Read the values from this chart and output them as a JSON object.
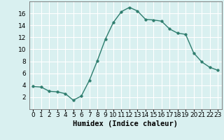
{
  "x": [
    0,
    1,
    2,
    3,
    4,
    5,
    6,
    7,
    8,
    9,
    10,
    11,
    12,
    13,
    14,
    15,
    16,
    17,
    18,
    19,
    20,
    21,
    22,
    23
  ],
  "y": [
    3.8,
    3.7,
    3.0,
    2.9,
    2.6,
    1.5,
    2.2,
    4.8,
    8.1,
    11.7,
    14.5,
    16.3,
    17.0,
    16.4,
    15.0,
    14.9,
    14.7,
    13.4,
    12.7,
    12.5,
    9.4,
    7.9,
    7.0,
    6.5
  ],
  "line_color": "#2e7d6e",
  "marker": "o",
  "marker_size": 2.5,
  "bg_color": "#d9f0f0",
  "grid_color": "#ffffff",
  "xlabel": "Humidex (Indice chaleur)",
  "xlim": [
    -0.5,
    23.5
  ],
  "ylim": [
    0,
    18
  ],
  "yticks": [
    2,
    4,
    6,
    8,
    10,
    12,
    14,
    16
  ],
  "xticks": [
    0,
    1,
    2,
    3,
    4,
    5,
    6,
    7,
    8,
    9,
    10,
    11,
    12,
    13,
    14,
    15,
    16,
    17,
    18,
    19,
    20,
    21,
    22,
    23
  ],
  "xlabel_fontsize": 7.5,
  "tick_fontsize": 6.5
}
